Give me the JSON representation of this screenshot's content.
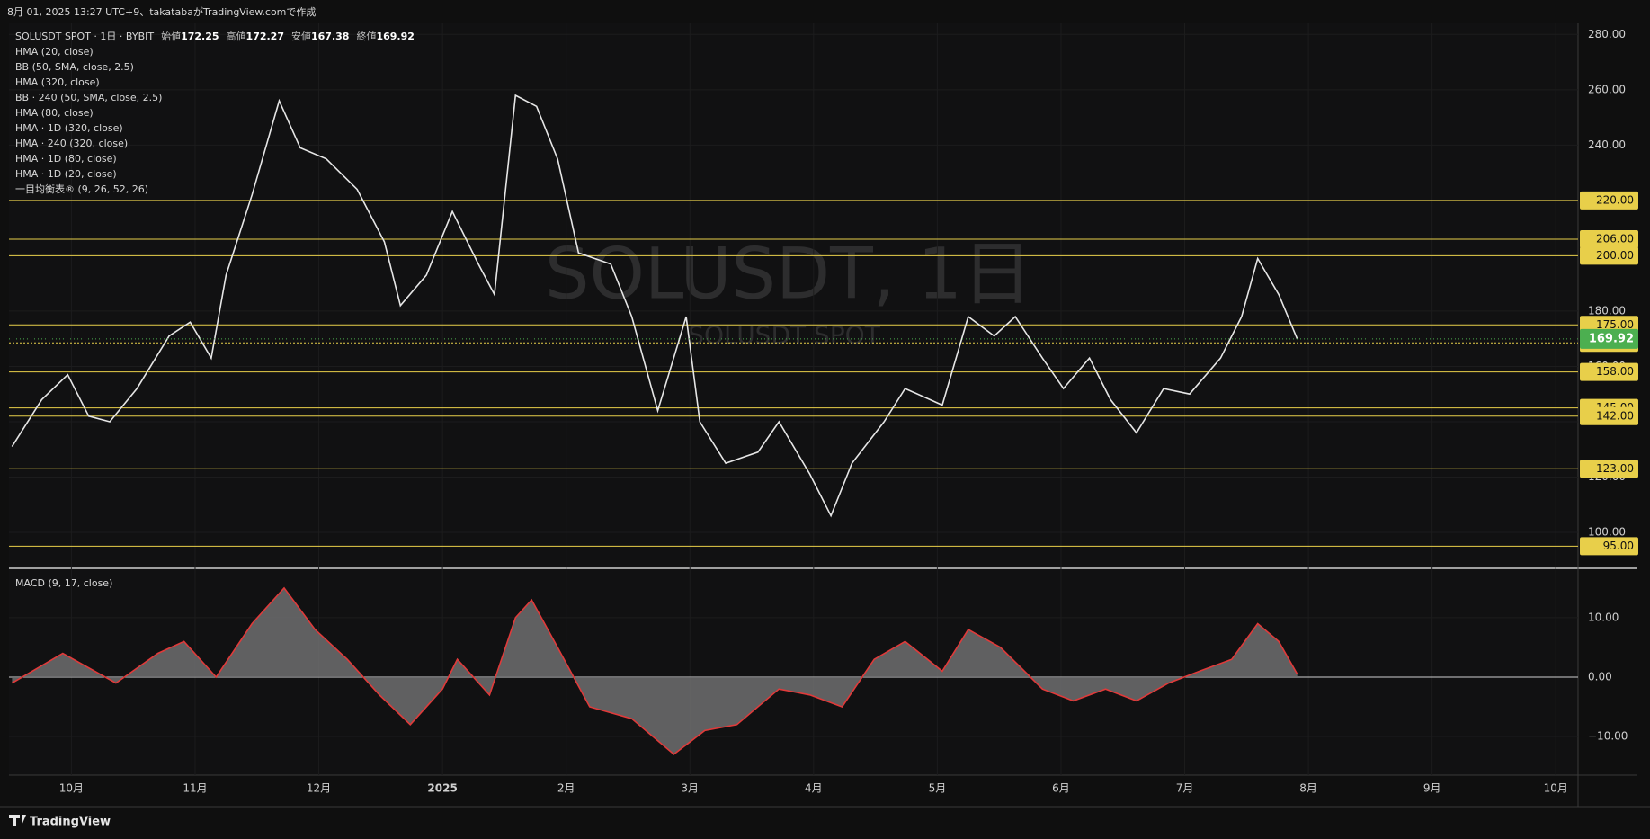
{
  "header": "8月 01, 2025 13:27 UTC+9、takatabaがTradingView.comで作成",
  "footer": "TradingView",
  "watermark": {
    "title": "SOLUSDT, 1日",
    "subtitle": "SOLUSDT SPOT"
  },
  "chart_data": [
    {
      "type": "line",
      "symbol": "SOLUSDT SPOT · 1日 · BYBIT",
      "ohlc": [
        {
          "name": "始値",
          "value": 172.25
        },
        {
          "name": "高値",
          "value": 172.27
        },
        {
          "name": "安値",
          "value": 167.38
        },
        {
          "name": "終値",
          "value": 169.92
        }
      ],
      "indicators": [
        "HMA (20, close)",
        "BB (50, SMA, close, 2.5)",
        "HMA (320, close)",
        "BB · 240 (50, SMA, close, 2.5)",
        "HMA (80, close)",
        "HMA · 1D (320, close)",
        "HMA · 240 (320, close)",
        "HMA · 1D (80, close)",
        "HMA · 1D (20, close)",
        "一目均衡表® (9, 26, 52, 26)"
      ],
      "x": [
        -0.48,
        -0.24,
        -0.03,
        0.14,
        0.31,
        0.53,
        0.79,
        0.96,
        1.13,
        1.25,
        1.46,
        1.68,
        1.85,
        2.06,
        2.31,
        2.53,
        2.66,
        2.87,
        3.08,
        3.29,
        3.42,
        3.59,
        3.76,
        3.93,
        4.1,
        4.36,
        4.53,
        4.74,
        4.97,
        5.08,
        5.29,
        5.55,
        5.72,
        5.97,
        6.14,
        6.31,
        6.57,
        6.74,
        7.04,
        7.25,
        7.46,
        7.63,
        7.85,
        8.02,
        8.23,
        8.4,
        8.61,
        8.83,
        9.04,
        9.29,
        9.46,
        9.59,
        9.76,
        9.91
      ],
      "series": [
        {
          "color": "#e6e6e6",
          "values": [
            131,
            148,
            157,
            142,
            140,
            152,
            171,
            176,
            163,
            193,
            222,
            256,
            239,
            235,
            224,
            205,
            182,
            193,
            216,
            197,
            186,
            258,
            254,
            235,
            201,
            197,
            178,
            144,
            178,
            140,
            125,
            129,
            140,
            121,
            106,
            125,
            140,
            152,
            146,
            178,
            171,
            178,
            163,
            152,
            163,
            148,
            136,
            152,
            150,
            163,
            178,
            199,
            186,
            169.92
          ]
        }
      ],
      "xlim": [
        -0.49,
        12.18
      ],
      "xticks": [
        {
          "value": 0,
          "label": "10月"
        },
        {
          "value": 1,
          "label": "11月"
        },
        {
          "value": 2,
          "label": "12月"
        },
        {
          "value": 3,
          "label": "2025"
        },
        {
          "value": 4,
          "label": "2月"
        },
        {
          "value": 5,
          "label": "3月"
        },
        {
          "value": 6,
          "label": "4月"
        },
        {
          "value": 7,
          "label": "5月"
        },
        {
          "value": 8,
          "label": "6月"
        },
        {
          "value": 9,
          "label": "7月"
        },
        {
          "value": 10,
          "label": "8月"
        },
        {
          "value": 11,
          "label": "9月"
        },
        {
          "value": 12,
          "label": "10月"
        }
      ],
      "ylim": [
        87,
        284
      ],
      "yticks": [
        {
          "value": 100,
          "label": "100.00"
        },
        {
          "value": 120,
          "label": "120.00"
        },
        {
          "value": 140,
          "label": "140.00"
        },
        {
          "value": 160,
          "label": "160.00"
        },
        {
          "value": 180,
          "label": "180.00"
        },
        {
          "value": 200,
          "label": "200.00"
        },
        {
          "value": 220,
          "label": "220.00"
        },
        {
          "value": 240,
          "label": "240.00"
        },
        {
          "value": 260,
          "label": "260.00"
        },
        {
          "value": 280,
          "label": "280.00"
        }
      ],
      "levels": [
        {
          "value": 220,
          "label": "220.00"
        },
        {
          "value": 206,
          "label": "206.00"
        },
        {
          "value": 200,
          "label": "200.00"
        },
        {
          "value": 175,
          "label": "175.00"
        },
        {
          "value": 168.5,
          "label": "168.50"
        },
        {
          "value": 158,
          "label": "158.00"
        },
        {
          "value": 145,
          "label": "145.00"
        },
        {
          "value": 142,
          "label": "142.00"
        },
        {
          "value": 123,
          "label": "123.00"
        },
        {
          "value": 95,
          "label": "95.00"
        }
      ],
      "level_color": "#e8cf4a",
      "last_color": "#4caf50"
    },
    {
      "type": "area",
      "title": "MACD (9, 17, close)",
      "color": "#6e6e70",
      "line_color": "#e03a3a",
      "x": [
        -0.48,
        -0.07,
        0.36,
        0.7,
        0.91,
        1.17,
        1.46,
        1.72,
        1.97,
        2.23,
        2.49,
        2.74,
        3.0,
        3.12,
        3.38,
        3.59,
        3.72,
        3.93,
        4.19,
        4.53,
        4.87,
        5.12,
        5.38,
        5.72,
        5.97,
        6.23,
        6.49,
        6.74,
        7.04,
        7.25,
        7.51,
        7.85,
        8.1,
        8.36,
        8.61,
        8.87,
        9.12,
        9.38,
        9.59,
        9.76,
        9.91
      ],
      "values": [
        -1,
        4,
        -1,
        4,
        6,
        0,
        9,
        15,
        8,
        3,
        -3,
        -8,
        -2,
        3,
        -3,
        10,
        13,
        5,
        -5,
        -7,
        -13,
        -9,
        -8,
        -2,
        -3,
        -5,
        3,
        6,
        1,
        8,
        5,
        -2,
        -4,
        -2,
        -4,
        -1,
        1,
        3,
        9,
        6,
        0.5
      ],
      "ylim": [
        -16.5,
        17.4
      ],
      "yticks": [
        {
          "value": 10,
          "label": "10.00"
        },
        {
          "value": 0,
          "label": "0.00"
        },
        {
          "value": -10,
          "label": "−10.00"
        }
      ]
    }
  ]
}
